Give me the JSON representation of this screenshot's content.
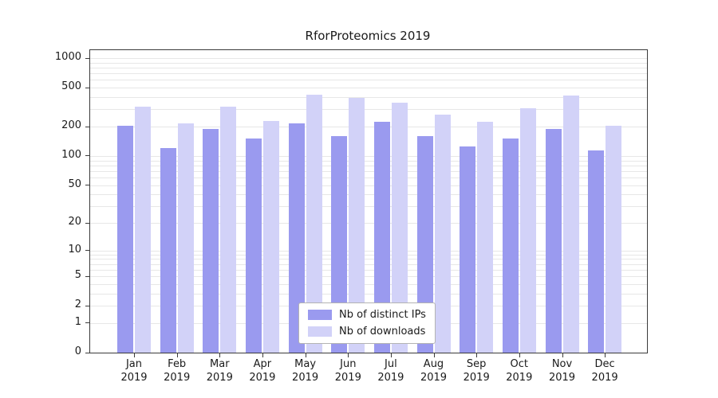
{
  "chart_data": {
    "type": "bar",
    "title": "RforProteomics 2019",
    "x_year": "2019",
    "categories": [
      "Jan",
      "Feb",
      "Mar",
      "Apr",
      "May",
      "Jun",
      "Jul",
      "Aug",
      "Sep",
      "Oct",
      "Nov",
      "Dec"
    ],
    "series": [
      {
        "name": "Nb of distinct IPs",
        "color": "#9a9aef",
        "values": [
          205,
          120,
          190,
          150,
          215,
          160,
          225,
          160,
          125,
          150,
          190,
          115
        ]
      },
      {
        "name": "Nb of downloads",
        "color": "#d2d2f8",
        "values": [
          320,
          215,
          320,
          230,
          420,
          395,
          350,
          265,
          225,
          310,
          415,
          205
        ]
      }
    ],
    "scale": "log1p",
    "ylim": [
      0,
      1200
    ],
    "y_ticks": [
      0,
      1,
      2,
      5,
      10,
      20,
      50,
      100,
      200,
      500,
      1000
    ],
    "grid_values": [
      1,
      2,
      3,
      4,
      5,
      6,
      7,
      8,
      9,
      10,
      20,
      30,
      40,
      50,
      60,
      70,
      80,
      90,
      100,
      200,
      300,
      400,
      500,
      600,
      700,
      800,
      900,
      1000
    ],
    "grid": true,
    "legend_position": "lower center",
    "axis_color": "#3a3a3a",
    "grid_color": "#e7e7e7"
  }
}
